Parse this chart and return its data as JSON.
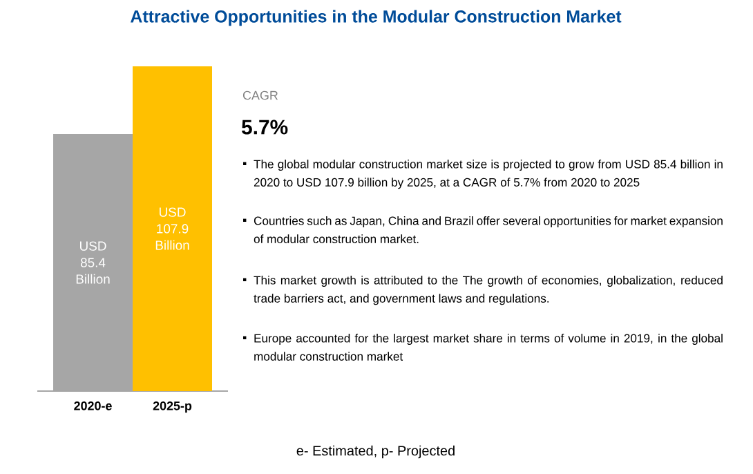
{
  "chart_data": {
    "type": "bar",
    "title": "Attractive Opportunities in the Modular Construction Market",
    "categories": [
      "2020-e",
      "2025-p"
    ],
    "values": [
      85.4,
      107.9
    ],
    "colors": [
      "#a6a6a6",
      "#ffc000"
    ],
    "value_labels": [
      "USD 85.4 Billion",
      "USD 107.9 Billion"
    ],
    "annotations": [
      "CAGR",
      "5.7%",
      "The global modular construction market size is projected to grow from USD 85.4 billion in 2020 to USD 107.9 billion by 2025, at a CAGR of 5.7% from 2020 to 2025",
      "Countries such as Japan, China and Brazil offer several opportunities for market expansion of modular construction market.",
      "This market growth is attributed to the The growth of economies, globalization, reduced trade barriers act, and government laws and regulations.",
      "Europe accounted for the largest market share  in terms of volume in 2019, in the global modular construction market",
      "e- Estimated, p- Projected"
    ]
  }
}
